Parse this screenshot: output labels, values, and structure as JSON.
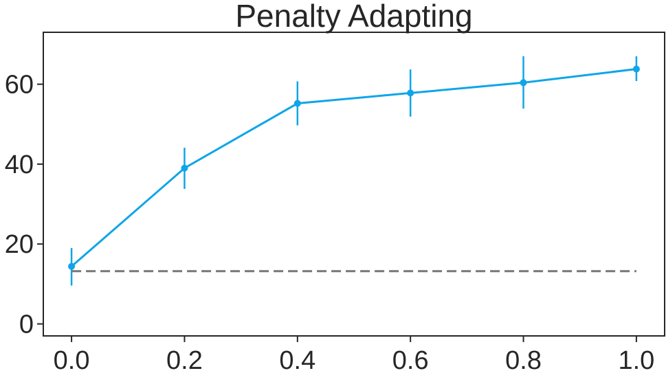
{
  "chart_data": {
    "type": "line",
    "title": "Penalty Adapting",
    "xlabel": "",
    "ylabel": "",
    "x": [
      0.0,
      0.2,
      0.4,
      0.6,
      0.8,
      1.0
    ],
    "xlim": [
      -0.05,
      1.05
    ],
    "ylim": [
      -3,
      73
    ],
    "x_ticks": [
      "0.0",
      "0.2",
      "0.4",
      "0.6",
      "0.8",
      "1.0"
    ],
    "y_ticks": [
      "0",
      "20",
      "40",
      "60"
    ],
    "grid": false,
    "legend": "none",
    "series": [
      {
        "values": [
          14.4,
          39.0,
          55.2,
          57.8,
          60.4,
          63.8
        ],
        "error_low": [
          9.6,
          33.8,
          49.7,
          51.9,
          53.9,
          60.8
        ],
        "error_high": [
          19.0,
          44.1,
          60.7,
          63.7,
          67.0,
          67.0
        ],
        "color": "#0fa5e8",
        "style": "solid",
        "marker": "circle"
      },
      {
        "values": [
          13.2,
          13.2,
          13.2,
          13.2,
          13.2,
          13.2
        ],
        "color": "#777777",
        "style": "dashed",
        "marker": "none"
      }
    ]
  }
}
